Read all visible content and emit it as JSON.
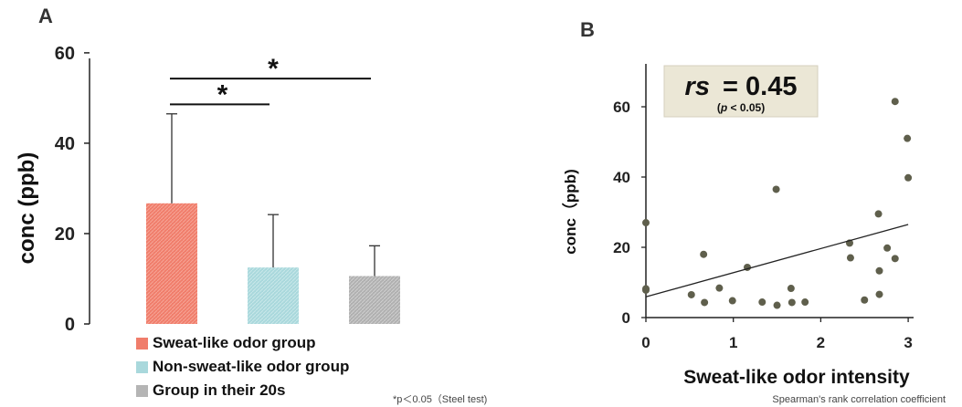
{
  "chart_data": [
    {
      "type": "bar",
      "panel": "A",
      "categories": [
        "Sweat-like odor group",
        "Non-sweat-like odor group",
        "Group in their 20s"
      ],
      "values": [
        26.7,
        12.5,
        10.6
      ],
      "error_upper": [
        46.5,
        24.2,
        17.3
      ],
      "colors": [
        "#f07d6b",
        "#a9d8dc",
        "#b5b5b5"
      ],
      "ylabel": "conc (ppb)",
      "yticks": [
        0,
        20,
        40,
        60
      ],
      "ylim": [
        0,
        62
      ],
      "significance": [
        {
          "from": 0,
          "to": 1,
          "label": "*",
          "y": 48.6
        },
        {
          "from": 0,
          "to": 2,
          "label": "*",
          "y": 54.3
        }
      ],
      "legend": [
        "Sweat-like odor group",
        "Non-sweat-like odor group",
        "Group in their 20s"
      ],
      "note": "*p＜0.05（Steel test)",
      "grid": false
    },
    {
      "type": "scatter",
      "panel": "B",
      "xlabel": "Sweat-like odor intensity",
      "ylabel": "conc（ppb)",
      "xticks": [
        0,
        1,
        2,
        3
      ],
      "yticks": [
        0,
        20,
        40,
        60
      ],
      "xlim": [
        0,
        3.1
      ],
      "ylim": [
        0,
        72
      ],
      "points": [
        {
          "x": 0.0,
          "y": 27.0
        },
        {
          "x": 0.0,
          "y": 8.2
        },
        {
          "x": 0.0,
          "y": 7.8
        },
        {
          "x": 0.52,
          "y": 6.5
        },
        {
          "x": 0.66,
          "y": 18.0
        },
        {
          "x": 0.67,
          "y": 4.3
        },
        {
          "x": 0.84,
          "y": 8.4
        },
        {
          "x": 0.99,
          "y": 4.8
        },
        {
          "x": 1.16,
          "y": 14.3
        },
        {
          "x": 1.33,
          "y": 4.4
        },
        {
          "x": 1.49,
          "y": 36.5
        },
        {
          "x": 1.5,
          "y": 3.5
        },
        {
          "x": 1.66,
          "y": 8.3
        },
        {
          "x": 1.67,
          "y": 4.3
        },
        {
          "x": 1.82,
          "y": 4.4
        },
        {
          "x": 2.33,
          "y": 21.2
        },
        {
          "x": 2.34,
          "y": 17.0
        },
        {
          "x": 2.5,
          "y": 5.0
        },
        {
          "x": 2.66,
          "y": 29.5
        },
        {
          "x": 2.67,
          "y": 13.3
        },
        {
          "x": 2.67,
          "y": 6.6
        },
        {
          "x": 2.76,
          "y": 19.8
        },
        {
          "x": 2.85,
          "y": 61.5
        },
        {
          "x": 2.85,
          "y": 16.8
        },
        {
          "x": 2.99,
          "y": 51.0
        },
        {
          "x": 3.0,
          "y": 39.8
        }
      ],
      "trendline": {
        "x": [
          0,
          3.0
        ],
        "y": [
          5.9,
          26.5
        ]
      },
      "stat_box": {
        "label": "rs",
        "value": "= 0.45",
        "sub_p": "p",
        "sub_rest": " < 0.05)",
        "sub_open": "("
      },
      "note": "Spearman's rank correlation coefficient",
      "grid": false
    }
  ],
  "panel_labels": {
    "a": "A",
    "b": "B"
  }
}
